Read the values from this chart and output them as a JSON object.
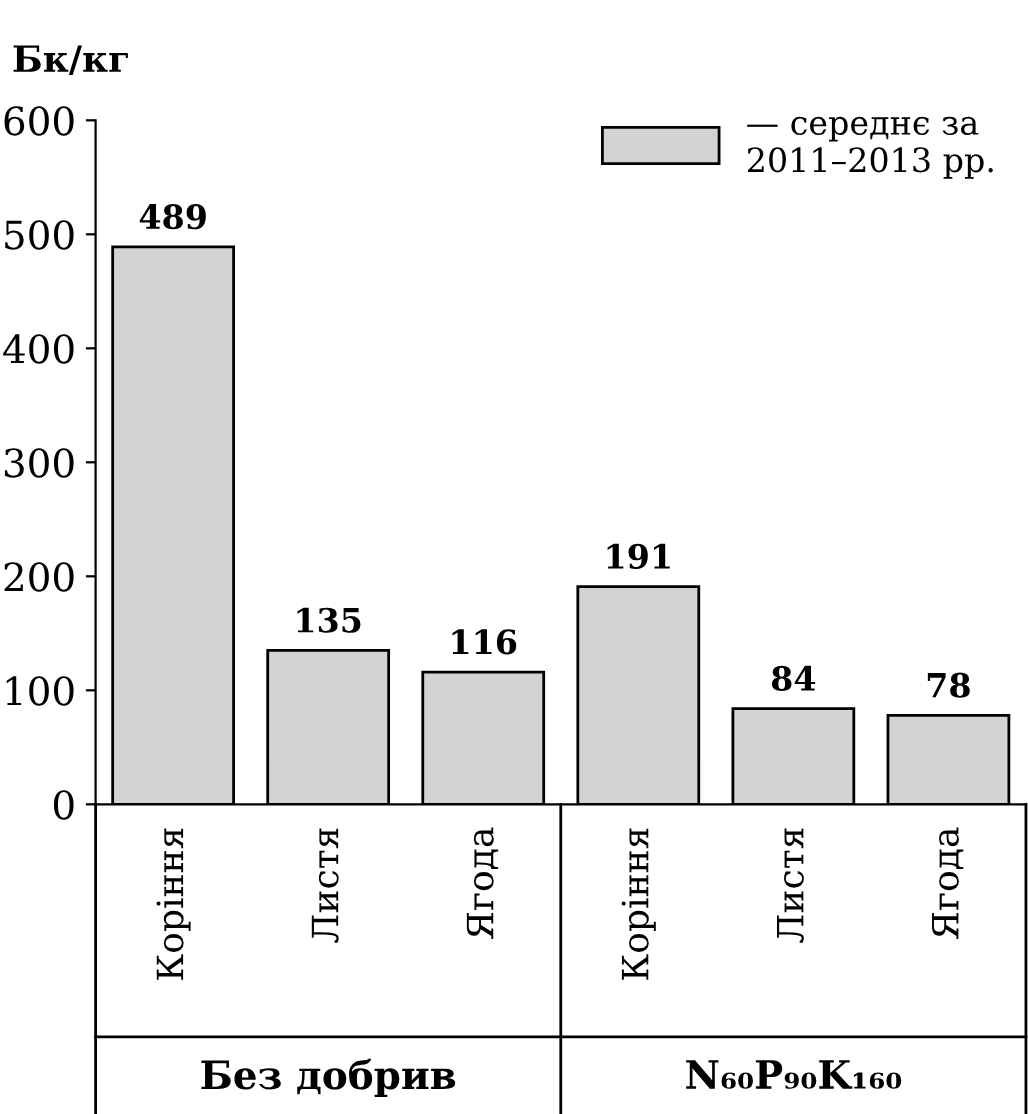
{
  "chart_data": {
    "type": "bar",
    "ylabel": "Бк/кг",
    "categories": [
      "Коріння",
      "Листя",
      "Ягода",
      "Коріння",
      "Листя",
      "Ягода"
    ],
    "series": [
      {
        "name": "— середнє за\n2011–2013 рр.",
        "color": "#d3d3d3",
        "values": [
          489,
          135,
          116,
          191,
          84,
          78
        ]
      }
    ],
    "annotations": [
      "Без добрив",
      "N₆₀P₉₀K₁₆₀"
    ],
    "ylim": [
      0,
      600
    ],
    "yticks": [
      0,
      100,
      200,
      300,
      400,
      500,
      600
    ],
    "data_labels": true,
    "grid": false,
    "legend": "top right"
  }
}
